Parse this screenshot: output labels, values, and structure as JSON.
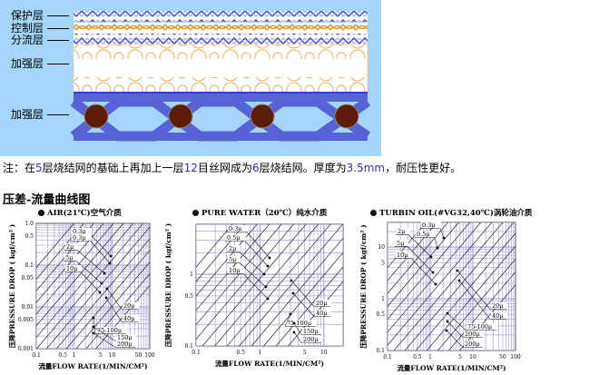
{
  "diagram": {
    "layers": [
      {
        "label": "保护层"
      },
      {
        "label": "控制层"
      },
      {
        "label": "分流层"
      },
      {
        "label": "加强层"
      },
      {
        "label": "加强层"
      }
    ],
    "colors": {
      "background": "#a3d6fa",
      "mesh_blue": "#5563d6",
      "mesh_gold": "#e0a850",
      "wire_core": "#5a1e08"
    }
  },
  "note": {
    "prefix": "注：在",
    "n1": "5",
    "t1": "层烧结网的基础上再加上一层",
    "n2": "12",
    "t2": "目丝网成为",
    "n3": "6",
    "t3": "层烧结网。厚度为",
    "n4": "3.5mm",
    "t4": "，耐压性更好。"
  },
  "section_title": "压差-流量曲线图",
  "charts": [
    {
      "title": "AIR(21℃)空气介质",
      "xlabel": "流量FLOW RATE(1/MIN/CM²)",
      "ylabel": "压降PRESSURE DROP ( kgf/cm² )",
      "x_ticks": [
        "0.1",
        "0.5",
        "1",
        "5",
        "10",
        "50",
        "100"
      ],
      "y_ticks": [
        "0.001",
        "0.005",
        "0.01",
        "0.05",
        "0.1",
        "0.5",
        "1.0"
      ],
      "xlim": [
        0.1,
        100
      ],
      "ylim": [
        0.001,
        1
      ],
      "labels": [
        "0.3μ",
        "0.3μ",
        "2μ",
        "5μ",
        "10μ",
        "20μ",
        "40μ",
        "75-100μ",
        "150μ",
        "200μ"
      ]
    },
    {
      "title": "PURE WATER（20℃）纯水介质",
      "xlabel": "流量FLOW RATE(1/MIN/CM²)",
      "ylabel": "压降PRESSURE DROP ( kgf/cm² )",
      "x_ticks": [
        "0.1",
        "0.5",
        "1",
        "5",
        "10"
      ],
      "y_ticks": [
        "0.1",
        "0.5",
        "1"
      ],
      "xlim": [
        0.1,
        20
      ],
      "ylim": [
        0.1,
        5
      ],
      "labels": [
        "0.3μ",
        "0.5μ",
        "2μ",
        "5μ",
        "10μ",
        "20μ",
        "40μ",
        "75-100μ",
        "150μ",
        "200μ"
      ]
    },
    {
      "title": "TURBIN OIL(#VG32,40℃)涡轮油介质",
      "xlabel": "流量FLOW RATE(1/MIN/CM²)",
      "ylabel": "压降PRESSURE DROP ( kgf/cm² )",
      "x_ticks": [
        "0.1",
        "0.5",
        "1",
        "5",
        "10",
        "50",
        "100"
      ],
      "y_ticks": [
        "0.1",
        "0.5",
        "1",
        "5",
        "10"
      ],
      "xlim": [
        0.1,
        100
      ],
      "ylim": [
        0.1,
        30
      ],
      "labels": [
        "0.3μ",
        "0.5μ",
        "2μ",
        "5μ",
        "10μ",
        "20μ",
        "40μ",
        "75-100μ",
        "200μ",
        "200μ"
      ]
    }
  ]
}
